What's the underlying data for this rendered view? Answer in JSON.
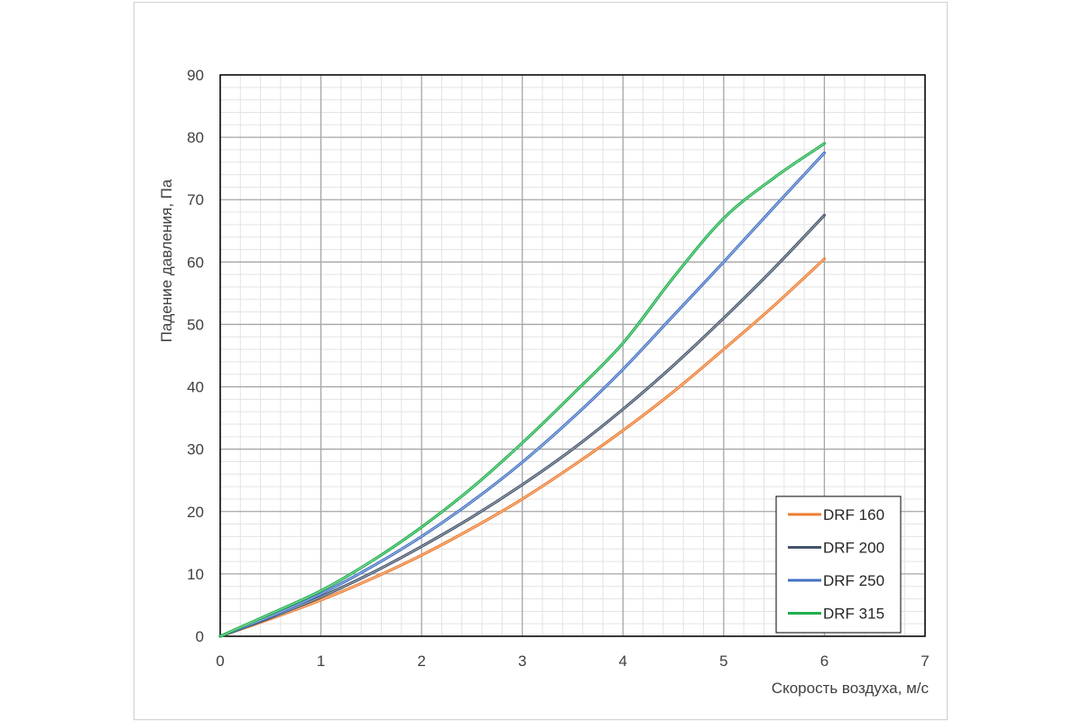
{
  "chart_data": {
    "type": "line",
    "title": "",
    "xlabel": "Скорость воздуха, м/с",
    "ylabel": "Падение давления, Па",
    "xlim": [
      0,
      7
    ],
    "ylim": [
      0,
      90
    ],
    "x_ticks": [
      "0",
      "1",
      "2",
      "3",
      "4",
      "5",
      "6",
      "7"
    ],
    "y_ticks": [
      "0",
      "10",
      "20",
      "30",
      "40",
      "50",
      "60",
      "70",
      "80",
      "90"
    ],
    "grid": true,
    "legend_position": "bottom-right",
    "series": [
      {
        "name": "DRF 160",
        "color": "#ed7d31",
        "x": [
          0,
          0.5,
          1,
          1.5,
          2,
          2.5,
          3,
          3.5,
          4,
          4.5,
          5,
          5.5,
          6
        ],
        "y": [
          0,
          2.8,
          5.8,
          9.2,
          13,
          17.3,
          22,
          27.3,
          33,
          39.2,
          46,
          53,
          60.5
        ]
      },
      {
        "name": "DRF 200",
        "color": "#44546a",
        "x": [
          0,
          0.5,
          1,
          1.5,
          2,
          2.5,
          3,
          3.5,
          4,
          4.5,
          5,
          5.5,
          6
        ],
        "y": [
          0,
          3,
          6.3,
          10.1,
          14.4,
          19.1,
          24.3,
          30,
          36.4,
          43.4,
          51,
          59,
          67.5
        ]
      },
      {
        "name": "DRF 250",
        "color": "#4472c4",
        "x": [
          0,
          0.5,
          1,
          1.5,
          2,
          2.5,
          3,
          3.5,
          4,
          4.5,
          5,
          5.5,
          6
        ],
        "y": [
          0,
          3.2,
          6.8,
          11.1,
          16,
          21.6,
          27.9,
          35,
          42.8,
          51.4,
          60,
          68.8,
          77.5
        ]
      },
      {
        "name": "DRF 315",
        "color": "#1fb04c",
        "x": [
          0,
          0.5,
          1,
          1.5,
          2,
          2.5,
          3,
          3.5,
          4,
          4.5,
          5,
          5.5,
          6
        ],
        "y": [
          0,
          3.6,
          7.3,
          12,
          17.5,
          23.8,
          31,
          38.8,
          47,
          57.5,
          67,
          73.5,
          79
        ]
      }
    ]
  }
}
